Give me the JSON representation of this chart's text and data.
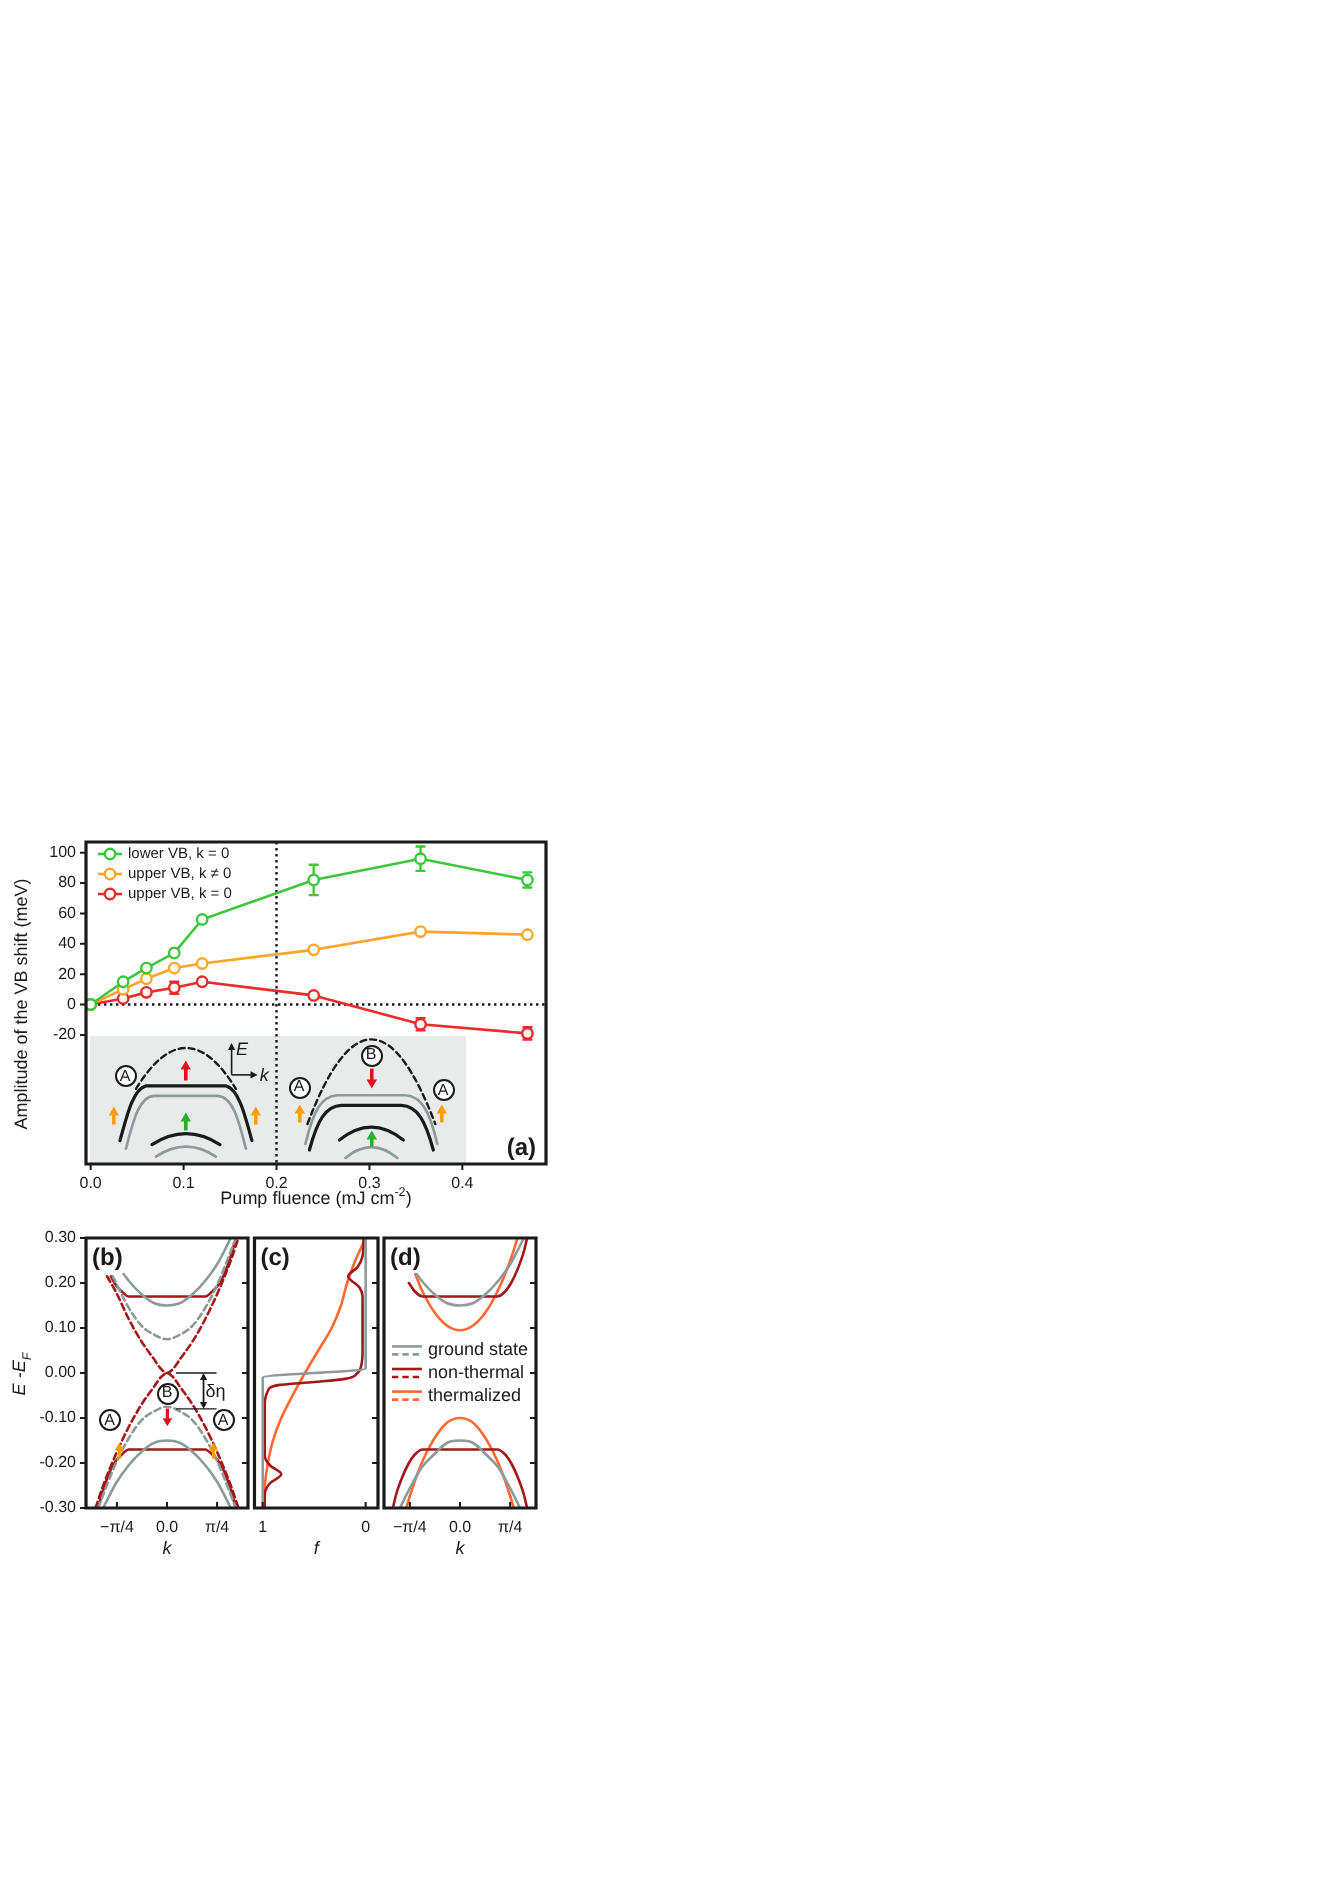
{
  "chart_data": [
    {
      "type": "line",
      "title": "(a)",
      "xlabel": "Pump fluence (mJ cm$^{-2}$)",
      "ylabel": "Amplitude of the VB shift (meV)",
      "x": [
        0,
        0.035,
        0.06,
        0.09,
        0.12,
        0.24,
        0.355,
        0.47
      ],
      "series": [
        {
          "name": "lower VB, k = 0",
          "color": "#3cc63c",
          "values": [
            0,
            15,
            24,
            34,
            56,
            82,
            96,
            82
          ],
          "errors": [
            null,
            null,
            null,
            null,
            null,
            10,
            8,
            5
          ]
        },
        {
          "name": "upper VB, k ≠ 0",
          "color": "#ffa42b",
          "values": [
            0,
            10,
            17,
            24,
            27,
            36,
            48,
            46
          ]
        },
        {
          "name": "upper VB, k = 0",
          "color": "#ec2a2a",
          "values": [
            0,
            4,
            8,
            11,
            15,
            6,
            -13,
            -19
          ],
          "errors": [
            null,
            null,
            null,
            4,
            null,
            null,
            4,
            4
          ]
        }
      ],
      "xlim": [
        -0.005,
        0.49
      ],
      "ylim": [
        -105,
        107
      ],
      "xticks": [
        {
          "value": 0,
          "label": "0.0"
        },
        0.1,
        0.2,
        0.3,
        0.4
      ],
      "yticks": [
        -20,
        0,
        20,
        40,
        60,
        80,
        100
      ],
      "ref_lines": [
        {
          "axis": "x",
          "value": 0.2,
          "line_style": "dotted",
          "color": "#1a1a1a"
        },
        {
          "axis": "y",
          "value": 0,
          "line_style": "dotted",
          "color": "#1a1a1a"
        }
      ],
      "legend": "top left",
      "marker": "circle",
      "annotations": [
        "A",
        "E",
        "k",
        "A",
        "B",
        "A"
      ]
    },
    {
      "type": "line",
      "title": "(b)",
      "xlabel": "k",
      "ylabel": "E -E$_{F}$",
      "xlim": [
        -1.27,
        1.27
      ],
      "ylim": [
        -0.3,
        0.3
      ],
      "xticks": [
        {
          "value": -0.785,
          "label": "−π/4"
        },
        {
          "value": 0,
          "label": "0.0"
        },
        {
          "value": 0.785,
          "label": "π/4"
        }
      ],
      "yticks": [
        {
          "value": -0.3,
          "label": "-0.30"
        },
        {
          "value": -0.2,
          "label": "-0.20"
        },
        {
          "value": -0.1,
          "label": "-0.10"
        },
        {
          "value": 0,
          "label": "0.00"
        },
        {
          "value": 0.1,
          "label": "0.10"
        },
        {
          "value": 0.2,
          "label": "0.20"
        },
        {
          "value": 0.3,
          "label": "0.30"
        }
      ],
      "series": [
        {
          "color": "#8c9a9a",
          "x": [
            -0.68,
            -0.6,
            -0.4,
            -0.2,
            0,
            0.2,
            0.4,
            0.6,
            0.8,
            1.0
          ],
          "values": [
            0.22,
            0.205,
            0.175,
            0.155,
            0.15,
            0.155,
            0.175,
            0.205,
            0.245,
            0.3
          ]
        },
        {
          "color": "#8c9a9a",
          "x": [
            -1.0,
            -0.8,
            -0.6,
            -0.4,
            -0.2,
            0,
            0.2,
            0.4,
            0.6,
            0.8,
            1.0
          ],
          "values": [
            -0.3,
            -0.245,
            -0.205,
            -0.175,
            -0.155,
            -0.15,
            -0.155,
            -0.175,
            -0.205,
            -0.245,
            -0.3
          ]
        },
        {
          "color": "#8c9a9a",
          "line_style": "dashed",
          "x": [
            -0.85,
            -0.6,
            -0.4,
            -0.2,
            0,
            0.2,
            0.4,
            0.6,
            0.8,
            1.08
          ],
          "values": [
            0.215,
            0.145,
            0.105,
            0.085,
            0.075,
            0.085,
            0.105,
            0.145,
            0.2,
            0.3
          ]
        },
        {
          "color": "#8c9a9a",
          "line_style": "dashed",
          "x": [
            -1.08,
            -0.8,
            -0.6,
            -0.4,
            -0.2,
            0,
            0.2,
            0.4,
            0.6,
            0.8,
            1.08
          ],
          "values": [
            -0.3,
            -0.2,
            -0.145,
            -0.105,
            -0.085,
            -0.075,
            -0.085,
            -0.105,
            -0.145,
            -0.2,
            -0.3
          ]
        },
        {
          "color": "#a3161a",
          "x": [
            -0.88,
            -0.8,
            -0.7,
            -0.6,
            -0.4,
            0,
            0.4,
            0.6,
            0.7,
            0.8,
            0.9,
            1.0,
            1.08
          ],
          "values": [
            0.215,
            0.195,
            0.18,
            0.17,
            0.17,
            0.17,
            0.17,
            0.17,
            0.18,
            0.195,
            0.22,
            0.26,
            0.3
          ]
        },
        {
          "color": "#a3161a",
          "x": [
            -1.08,
            -1.0,
            -0.9,
            -0.8,
            -0.7,
            -0.6,
            -0.4,
            0,
            0.4,
            0.6,
            0.7,
            0.8,
            0.9,
            1.0,
            1.08
          ],
          "values": [
            -0.3,
            -0.26,
            -0.22,
            -0.195,
            -0.18,
            -0.17,
            -0.17,
            -0.17,
            -0.17,
            -0.17,
            -0.18,
            -0.195,
            -0.22,
            -0.26,
            -0.3
          ]
        },
        {
          "color": "#a3161a",
          "line_style": "dashed",
          "x": [
            -0.94,
            -0.8,
            -0.6,
            -0.4,
            -0.2,
            -0.1,
            0,
            0.1,
            0.2,
            0.4,
            0.6,
            0.8,
            1.0,
            1.12
          ],
          "values": [
            0.215,
            0.18,
            0.12,
            0.07,
            0.03,
            0.01,
            0,
            0.01,
            0.03,
            0.07,
            0.12,
            0.18,
            0.25,
            0.3
          ]
        },
        {
          "color": "#a3161a",
          "line_style": "dashed",
          "x": [
            -1.12,
            -1.0,
            -0.8,
            -0.6,
            -0.4,
            -0.2,
            -0.1,
            0,
            0.1,
            0.2,
            0.4,
            0.6,
            0.8,
            1.0,
            1.12
          ],
          "values": [
            -0.3,
            -0.25,
            -0.18,
            -0.12,
            -0.07,
            -0.03,
            -0.01,
            0,
            -0.01,
            -0.03,
            -0.07,
            -0.12,
            -0.18,
            -0.25,
            -0.3
          ]
        }
      ],
      "annotations": [
        {
          "text": "A",
          "x": -0.9,
          "y": -0.105
        },
        {
          "text": "B",
          "x": 0,
          "y": -0.046
        },
        {
          "text": "A",
          "x": 0.88,
          "y": -0.105
        },
        "δη"
      ]
    },
    {
      "type": "line",
      "title": "(c)",
      "xlabel": "f",
      "xlim": [
        1.08,
        -0.12
      ],
      "ylim": [
        -0.3,
        0.3
      ],
      "xticks": [
        1,
        0
      ],
      "yticks": [
        -0.3,
        -0.2,
        -0.1,
        0,
        0.1,
        0.2,
        0.3
      ],
      "tick_labels": "x",
      "series": [
        {
          "color": "#8c9a9a",
          "x": [
            1,
            1,
            0,
            0
          ],
          "values": [
            -0.3,
            -0.01,
            0.01,
            0.3
          ]
        },
        {
          "color": "#a3161a",
          "x": [
            0.98,
            0.98,
            0.93,
            0.82,
            0.93,
            0.98,
            0.98,
            0.95,
            0.85,
            0.5,
            0.2,
            0.08,
            0.04,
            0.03,
            0.03,
            0.06,
            0.17,
            0.08,
            0.03,
            0.02
          ],
          "values": [
            -0.3,
            -0.27,
            -0.245,
            -0.225,
            -0.205,
            -0.185,
            -0.07,
            -0.04,
            -0.027,
            -0.02,
            -0.013,
            0,
            0.02,
            0.05,
            0.17,
            0.19,
            0.215,
            0.235,
            0.26,
            0.3
          ]
        },
        {
          "color": "#ff6830",
          "x": [
            0.99,
            0.98,
            0.95,
            0.9,
            0.82,
            0.71,
            0.59,
            0.46,
            0.33,
            0.24,
            0.18,
            0.1,
            0.0
          ],
          "values": [
            -0.3,
            -0.25,
            -0.2,
            -0.15,
            -0.1,
            -0.05,
            0,
            0.05,
            0.1,
            0.15,
            0.2,
            0.25,
            0.3
          ]
        }
      ]
    },
    {
      "type": "line",
      "title": "(d)",
      "xlabel": "k",
      "xlim": [
        -1.19,
        1.19
      ],
      "ylim": [
        -0.3,
        0.3
      ],
      "xticks": [
        {
          "value": -0.785,
          "label": "−π/4"
        },
        {
          "value": 0,
          "label": "0.0"
        },
        {
          "value": 0.785,
          "label": "π/4"
        }
      ],
      "yticks": [
        -0.3,
        -0.2,
        -0.1,
        0,
        0.1,
        0.2,
        0.3
      ],
      "tick_labels": "x",
      "legend": "right",
      "series": [
        {
          "name": "ground state",
          "color": "#8c9a9a",
          "x": [
            -0.68,
            -0.6,
            -0.4,
            -0.2,
            0,
            0.2,
            0.4,
            0.6,
            0.8,
            1.0
          ],
          "values": [
            0.22,
            0.205,
            0.175,
            0.155,
            0.15,
            0.155,
            0.175,
            0.205,
            0.245,
            0.3
          ]
        },
        {
          "color": "#8c9a9a",
          "x": [
            -0.94,
            -0.8,
            -0.6,
            -0.4,
            -0.2,
            0,
            0.2,
            0.4,
            0.6,
            0.8,
            0.94
          ],
          "values": [
            -0.3,
            -0.26,
            -0.21,
            -0.18,
            -0.155,
            -0.15,
            -0.155,
            -0.18,
            -0.21,
            -0.26,
            -0.3
          ]
        },
        {
          "name": "non-thermal",
          "color": "#a3161a",
          "x": [
            -0.8,
            -0.7,
            -0.58,
            -0.4,
            0,
            0.4,
            0.58,
            0.7,
            0.8,
            0.9,
            1.0,
            1.05
          ],
          "values": [
            0.2,
            0.18,
            0.17,
            0.17,
            0.17,
            0.17,
            0.17,
            0.18,
            0.2,
            0.23,
            0.27,
            0.3
          ]
        },
        {
          "color": "#a3161a",
          "x": [
            -1.05,
            -1.0,
            -0.9,
            -0.8,
            -0.7,
            -0.58,
            -0.4,
            0,
            0.4,
            0.58,
            0.7,
            0.8,
            0.9,
            1.0,
            1.05
          ],
          "values": [
            -0.3,
            -0.27,
            -0.23,
            -0.2,
            -0.18,
            -0.17,
            -0.17,
            -0.17,
            -0.17,
            -0.17,
            -0.18,
            -0.2,
            -0.23,
            -0.27,
            -0.3
          ]
        },
        {
          "name": "thermalized",
          "color": "#ff6830",
          "x": [
            -0.7,
            -0.6,
            -0.4,
            -0.2,
            0,
            0.2,
            0.4,
            0.6,
            0.8,
            0.9
          ],
          "values": [
            0.22,
            0.185,
            0.135,
            0.105,
            0.095,
            0.105,
            0.135,
            0.185,
            0.255,
            0.3
          ]
        },
        {
          "color": "#ff6830",
          "x": [
            -0.84,
            -0.8,
            -0.6,
            -0.4,
            -0.2,
            0,
            0.2,
            0.4,
            0.6,
            0.8,
            0.84
          ],
          "values": [
            -0.3,
            -0.28,
            -0.2,
            -0.145,
            -0.11,
            -0.1,
            -0.11,
            -0.145,
            -0.2,
            -0.28,
            -0.3
          ]
        }
      ]
    }
  ]
}
